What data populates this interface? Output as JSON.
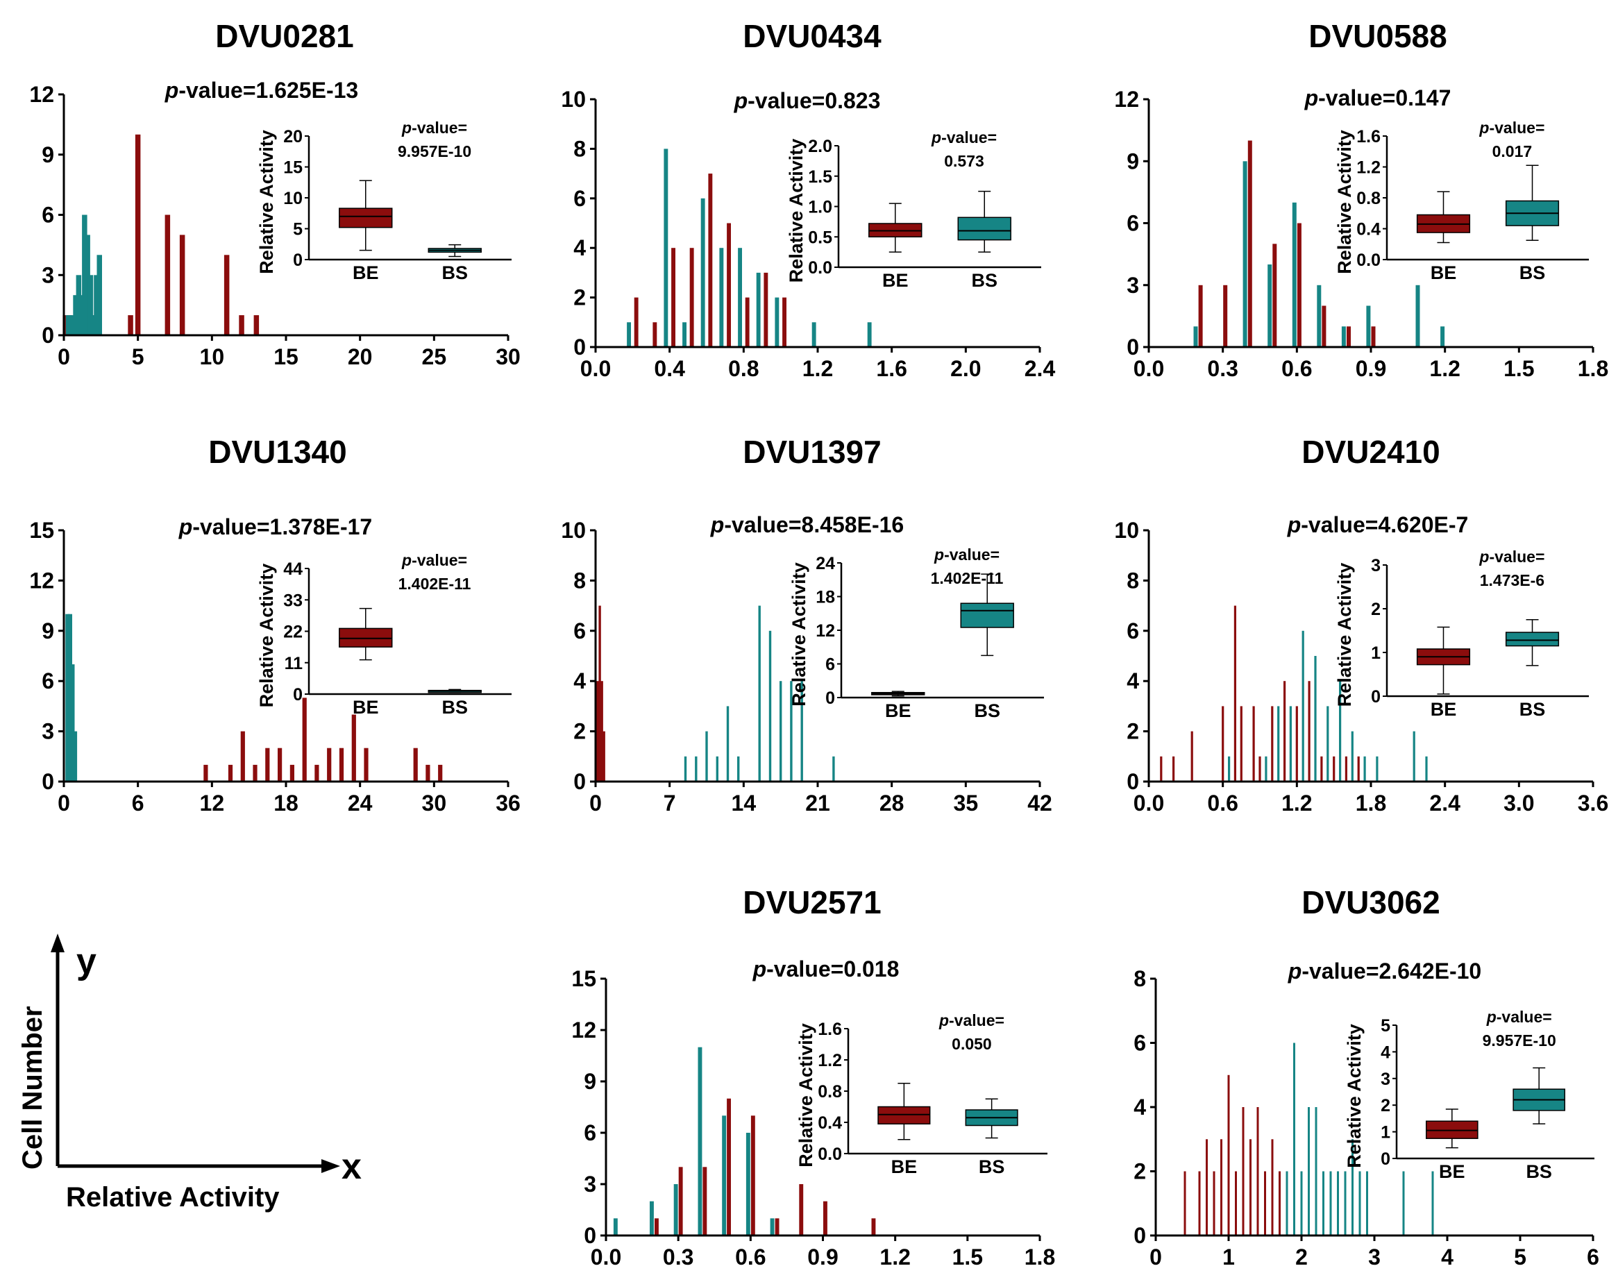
{
  "colors": {
    "BE": "#8b0d0d",
    "BS": "#168585",
    "axis": "#000000"
  },
  "labels": {
    "inset_ylabel": "Relative Activity",
    "pvalue_prefix": "p",
    "pvalue_suffix": "-value=",
    "inset_pvalue_label": "-value="
  },
  "legend": {
    "ylabel": "Cell Number",
    "xlabel": "Relative Activity",
    "y_var": "y",
    "x_var": "x"
  },
  "chart_data": [
    {
      "type": "bar",
      "title": "DVU0281",
      "pvalue": "1.625E-13",
      "xlim": [
        0,
        30
      ],
      "xticks": [
        "0",
        "5",
        "10",
        "15",
        "20",
        "25",
        "30"
      ],
      "ylim": [
        0,
        12
      ],
      "yticks": [
        "0",
        "3",
        "6",
        "9",
        "12"
      ],
      "barWidth": 0.35,
      "series": [
        {
          "name": "BE",
          "x": [
            0.1,
            0.4,
            1.5,
            2.0,
            4.5,
            5.0,
            7.0,
            8.0,
            11.0,
            12.0,
            13.0
          ],
          "y": [
            1,
            1,
            2,
            1,
            1,
            10,
            6,
            5,
            4,
            1,
            1
          ]
        },
        {
          "name": "BS",
          "x": [
            0.3,
            0.6,
            0.8,
            1.0,
            1.2,
            1.4,
            1.6,
            1.8,
            2.0,
            2.2,
            2.4
          ],
          "y": [
            1,
            1,
            2,
            3,
            2,
            6,
            5,
            3,
            1,
            3,
            4
          ]
        }
      ],
      "inset": {
        "type": "box",
        "pvalue": "9.957E-10",
        "ylim": [
          0,
          20
        ],
        "yticks": [
          "0",
          "5",
          "10",
          "15",
          "20"
        ],
        "boxes": [
          {
            "name": "BE",
            "min": 1.5,
            "q1": 5.2,
            "median": 7.0,
            "q3": 8.3,
            "max": 12.8
          },
          {
            "name": "BS",
            "min": 0.5,
            "q1": 1.2,
            "median": 1.5,
            "q3": 1.8,
            "max": 2.4
          }
        ]
      }
    },
    {
      "type": "bar",
      "title": "DVU0434",
      "pvalue": "0.823",
      "xlim": [
        0,
        2.4
      ],
      "xticks": [
        "0.0",
        "0.4",
        "0.8",
        "1.2",
        "1.6",
        "2.0",
        "2.4"
      ],
      "ylim": [
        0,
        10
      ],
      "yticks": [
        "0",
        "2",
        "4",
        "6",
        "8",
        "10"
      ],
      "barWidth": 0.022,
      "series": [
        {
          "name": "BE",
          "x": [
            0.22,
            0.32,
            0.42,
            0.52,
            0.62,
            0.72,
            0.82,
            0.92,
            1.02
          ],
          "y": [
            2,
            1,
            4,
            4,
            7,
            5,
            2,
            3,
            2
          ]
        },
        {
          "name": "BS",
          "x": [
            0.18,
            0.38,
            0.48,
            0.58,
            0.68,
            0.78,
            0.88,
            0.98,
            1.18,
            1.48
          ],
          "y": [
            1,
            8,
            1,
            6,
            4,
            4,
            3,
            2,
            1,
            1
          ]
        }
      ],
      "inset": {
        "type": "box",
        "pvalue": "0.573",
        "ylim": [
          0,
          2
        ],
        "yticks": [
          "0.0",
          "0.5",
          "1.0",
          "1.5",
          "2.0"
        ],
        "boxes": [
          {
            "name": "BE",
            "min": 0.25,
            "q1": 0.5,
            "median": 0.6,
            "q3": 0.72,
            "max": 1.05
          },
          {
            "name": "BS",
            "min": 0.25,
            "q1": 0.45,
            "median": 0.6,
            "q3": 0.82,
            "max": 1.25
          }
        ]
      }
    },
    {
      "type": "bar",
      "title": "DVU0588",
      "pvalue": "0.147",
      "xlim": [
        0,
        1.8
      ],
      "xticks": [
        "0.0",
        "0.3",
        "0.6",
        "0.9",
        "1.2",
        "1.5",
        "1.8"
      ],
      "ylim": [
        0,
        12
      ],
      "yticks": [
        "0",
        "3",
        "6",
        "9",
        "12"
      ],
      "barWidth": 0.017,
      "series": [
        {
          "name": "BE",
          "x": [
            0.21,
            0.31,
            0.41,
            0.51,
            0.61,
            0.71,
            0.81,
            0.91
          ],
          "y": [
            3,
            3,
            10,
            5,
            6,
            2,
            1,
            1
          ]
        },
        {
          "name": "BS",
          "x": [
            0.19,
            0.39,
            0.49,
            0.59,
            0.69,
            0.79,
            0.89,
            1.09,
            1.19
          ],
          "y": [
            1,
            9,
            4,
            7,
            3,
            1,
            2,
            3,
            1
          ]
        }
      ],
      "inset": {
        "type": "box",
        "pvalue": "0.017",
        "ylim": [
          0,
          1.6
        ],
        "yticks": [
          "0.0",
          "0.4",
          "0.8",
          "1.2",
          "1.6"
        ],
        "boxes": [
          {
            "name": "BE",
            "min": 0.22,
            "q1": 0.35,
            "median": 0.46,
            "q3": 0.58,
            "max": 0.88
          },
          {
            "name": "BS",
            "min": 0.25,
            "q1": 0.44,
            "median": 0.6,
            "q3": 0.76,
            "max": 1.22
          }
        ]
      }
    },
    {
      "type": "bar",
      "title": "DVU1340",
      "pvalue": "1.378E-17",
      "xlim": [
        0,
        36
      ],
      "xticks": [
        "0",
        "6",
        "12",
        "18",
        "24",
        "30",
        "36"
      ],
      "ylim": [
        0,
        15
      ],
      "yticks": [
        "0",
        "3",
        "6",
        "9",
        "12",
        "15"
      ],
      "barWidth": 0.35,
      "series": [
        {
          "name": "BE",
          "x": [
            11.5,
            13.5,
            14.5,
            15.5,
            16.5,
            17.5,
            18.5,
            19.5,
            20.5,
            21.5,
            22.5,
            23.5,
            24.5,
            28.5,
            29.5,
            30.5
          ],
          "y": [
            1,
            1,
            3,
            1,
            2,
            2,
            1,
            5,
            1,
            2,
            2,
            4,
            2,
            2,
            1,
            1
          ]
        },
        {
          "name": "BS",
          "x": [
            0.3,
            0.5,
            0.7,
            0.9
          ],
          "y": [
            10,
            10,
            7,
            3
          ]
        }
      ],
      "inset": {
        "type": "box",
        "pvalue": "1.402E-11",
        "ylim": [
          0,
          44
        ],
        "yticks": [
          "0",
          "11",
          "22",
          "33",
          "44"
        ],
        "boxes": [
          {
            "name": "BE",
            "min": 12,
            "q1": 16.5,
            "median": 19.5,
            "q3": 23,
            "max": 30
          },
          {
            "name": "BS",
            "min": 0.6,
            "q1": 0.9,
            "median": 1.1,
            "q3": 1.3,
            "max": 1.6
          }
        ]
      }
    },
    {
      "type": "bar",
      "title": "DVU1397",
      "pvalue": "8.458E-16",
      "xlim": [
        0,
        42
      ],
      "xticks": [
        "0",
        "7",
        "14",
        "21",
        "28",
        "35",
        "42"
      ],
      "ylim": [
        0,
        10
      ],
      "yticks": [
        "0",
        "2",
        "4",
        "6",
        "8",
        "10"
      ],
      "barWidth": 0.22,
      "series": [
        {
          "name": "BE",
          "x": [
            0.2,
            0.4,
            0.6,
            0.8
          ],
          "y": [
            4,
            7,
            4,
            2
          ]
        },
        {
          "name": "BS",
          "x": [
            8.5,
            9.5,
            10.5,
            11.5,
            12.5,
            13.5,
            15.5,
            16.5,
            17.5,
            18.5,
            19.5,
            22.5
          ],
          "y": [
            1,
            1,
            2,
            1,
            3,
            1,
            7,
            6,
            4,
            4,
            4,
            1
          ]
        }
      ],
      "inset": {
        "type": "box",
        "pvalue": "1.402E-11",
        "ylim": [
          0,
          24
        ],
        "yticks": [
          "0",
          "6",
          "12",
          "18",
          "24"
        ],
        "boxes": [
          {
            "name": "BE",
            "min": 0.3,
            "q1": 0.5,
            "median": 0.7,
            "q3": 0.9,
            "max": 1.1
          },
          {
            "name": "BS",
            "min": 7.5,
            "q1": 12.5,
            "median": 15.5,
            "q3": 16.8,
            "max": 22
          }
        ]
      }
    },
    {
      "type": "bar",
      "title": "DVU2410",
      "pvalue": "4.620E-7",
      "xlim": [
        0,
        3.6
      ],
      "xticks": [
        "0.0",
        "0.6",
        "1.2",
        "1.8",
        "2.4",
        "3.0",
        "3.6"
      ],
      "ylim": [
        0,
        10
      ],
      "yticks": [
        "0",
        "2",
        "4",
        "6",
        "8",
        "10"
      ],
      "barWidth": 0.018,
      "series": [
        {
          "name": "BE",
          "x": [
            0.1,
            0.2,
            0.35,
            0.6,
            0.7,
            0.75,
            0.85,
            0.9,
            1.0,
            1.1,
            1.2,
            1.3,
            1.4,
            1.5,
            1.6,
            1.7
          ],
          "y": [
            1,
            1,
            2,
            3,
            7,
            3,
            3,
            1,
            3,
            4,
            3,
            4,
            1,
            1,
            1,
            1
          ]
        },
        {
          "name": "BS",
          "x": [
            0.65,
            0.95,
            1.05,
            1.15,
            1.25,
            1.35,
            1.45,
            1.55,
            1.65,
            1.75,
            1.85,
            2.15,
            2.25
          ],
          "y": [
            1,
            1,
            3,
            3,
            6,
            5,
            3,
            4,
            2,
            1,
            1,
            2,
            1
          ]
        }
      ],
      "inset": {
        "type": "box",
        "pvalue": "1.473E-6",
        "ylim": [
          0,
          3
        ],
        "yticks": [
          "0",
          "1",
          "2",
          "3"
        ],
        "boxes": [
          {
            "name": "BE",
            "min": 0.05,
            "q1": 0.72,
            "median": 0.9,
            "q3": 1.08,
            "max": 1.58
          },
          {
            "name": "BS",
            "min": 0.7,
            "q1": 1.15,
            "median": 1.28,
            "q3": 1.46,
            "max": 1.75
          }
        ]
      }
    },
    {
      "type": "bar",
      "title": "DVU2571",
      "pvalue": "0.018",
      "xlim": [
        0,
        1.8
      ],
      "xticks": [
        "0.0",
        "0.3",
        "0.6",
        "0.9",
        "1.2",
        "1.5",
        "1.8"
      ],
      "ylim": [
        0,
        15
      ],
      "yticks": [
        "0",
        "3",
        "6",
        "9",
        "12",
        "15"
      ],
      "barWidth": 0.017,
      "series": [
        {
          "name": "BE",
          "x": [
            0.21,
            0.31,
            0.41,
            0.51,
            0.61,
            0.71,
            0.81,
            0.91,
            1.11
          ],
          "y": [
            1,
            4,
            4,
            8,
            7,
            1,
            3,
            2,
            1
          ]
        },
        {
          "name": "BS",
          "x": [
            0.04,
            0.19,
            0.29,
            0.39,
            0.49,
            0.59,
            0.69
          ],
          "y": [
            1,
            2,
            3,
            11,
            7,
            6,
            1
          ]
        }
      ],
      "inset": {
        "type": "box",
        "pvalue": "0.050",
        "ylim": [
          0,
          1.6
        ],
        "yticks": [
          "0.0",
          "0.4",
          "0.8",
          "1.2",
          "1.6"
        ],
        "boxes": [
          {
            "name": "BE",
            "min": 0.18,
            "q1": 0.38,
            "median": 0.5,
            "q3": 0.6,
            "max": 0.9
          },
          {
            "name": "BS",
            "min": 0.2,
            "q1": 0.36,
            "median": 0.46,
            "q3": 0.56,
            "max": 0.7
          }
        ]
      }
    },
    {
      "type": "bar",
      "title": "DVU3062",
      "pvalue": "2.642E-10",
      "xlim": [
        0,
        6
      ],
      "xticks": [
        "0",
        "1",
        "2",
        "3",
        "4",
        "5",
        "6"
      ],
      "ylim": [
        0,
        8
      ],
      "yticks": [
        "0",
        "2",
        "4",
        "6",
        "8"
      ],
      "barWidth": 0.024,
      "series": [
        {
          "name": "BE",
          "x": [
            0.4,
            0.6,
            0.7,
            0.8,
            0.9,
            1.0,
            1.1,
            1.2,
            1.3,
            1.4,
            1.5,
            1.6,
            1.7
          ],
          "y": [
            2,
            2,
            3,
            2,
            3,
            5,
            2,
            4,
            3,
            4,
            2,
            3,
            2
          ]
        },
        {
          "name": "BS",
          "x": [
            1.8,
            1.9,
            2.0,
            2.1,
            2.2,
            2.3,
            2.4,
            2.5,
            2.6,
            2.7,
            2.8,
            2.9,
            3.4,
            3.8
          ],
          "y": [
            2,
            6,
            2,
            4,
            4,
            2,
            2,
            2,
            2,
            3,
            2,
            2,
            2,
            2
          ]
        }
      ],
      "inset": {
        "type": "box",
        "pvalue": "9.957E-10",
        "ylim": [
          0,
          5
        ],
        "yticks": [
          "0",
          "1",
          "2",
          "3",
          "4",
          "5"
        ],
        "boxes": [
          {
            "name": "BE",
            "min": 0.4,
            "q1": 0.75,
            "median": 1.05,
            "q3": 1.4,
            "max": 1.85
          },
          {
            "name": "BS",
            "min": 1.3,
            "q1": 1.8,
            "median": 2.2,
            "q3": 2.6,
            "max": 3.4
          }
        ]
      }
    }
  ]
}
